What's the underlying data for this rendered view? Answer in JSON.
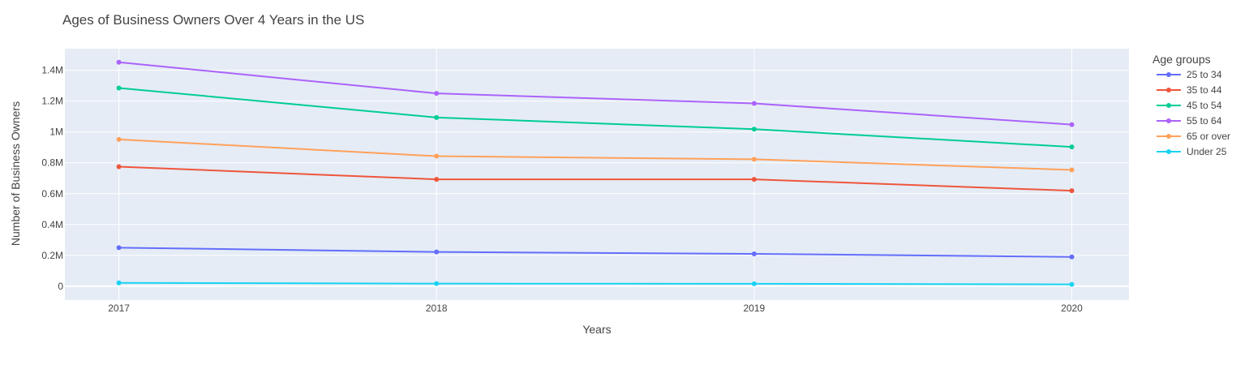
{
  "chart_data": {
    "type": "line",
    "title": "Ages of Business Owners Over 4 Years in the US",
    "xlabel": "Years",
    "ylabel": "Number of Business Owners",
    "x": [
      2017,
      2018,
      2019,
      2020
    ],
    "x_tick_labels": [
      "2017",
      "2018",
      "2019",
      "2020"
    ],
    "xlim": [
      2016.83,
      2020.18
    ],
    "ylim": [
      -90000,
      1540000
    ],
    "y_ticks": [
      0,
      200000,
      400000,
      600000,
      800000,
      1000000,
      1200000,
      1400000
    ],
    "y_tick_labels": [
      "0",
      "0.2M",
      "0.4M",
      "0.6M",
      "0.8M",
      "1M",
      "1.2M",
      "1.4M"
    ],
    "grid": true,
    "legend_title": "Age groups",
    "legend_position": "right",
    "series": [
      {
        "name": "25 to 34",
        "color": "#636efa",
        "values": [
          250000,
          222000,
          210000,
          190000
        ]
      },
      {
        "name": "35 to 44",
        "color": "#ef553b",
        "values": [
          775000,
          693000,
          693000,
          619000
        ]
      },
      {
        "name": "45 to 54",
        "color": "#00cc96",
        "values": [
          1285000,
          1094000,
          1018000,
          903000
        ]
      },
      {
        "name": "55 to 64",
        "color": "#ab63fa",
        "values": [
          1452000,
          1250000,
          1185000,
          1048000
        ]
      },
      {
        "name": "65 or over",
        "color": "#ffa15a",
        "values": [
          952000,
          843000,
          823000,
          754000
        ]
      },
      {
        "name": "Under 25",
        "color": "#19d3f3",
        "values": [
          22000,
          17000,
          16000,
          12000
        ]
      }
    ]
  },
  "colors": {
    "plot_background": "#e5ecf6",
    "grid": "#ffffff",
    "text": "#444444"
  }
}
